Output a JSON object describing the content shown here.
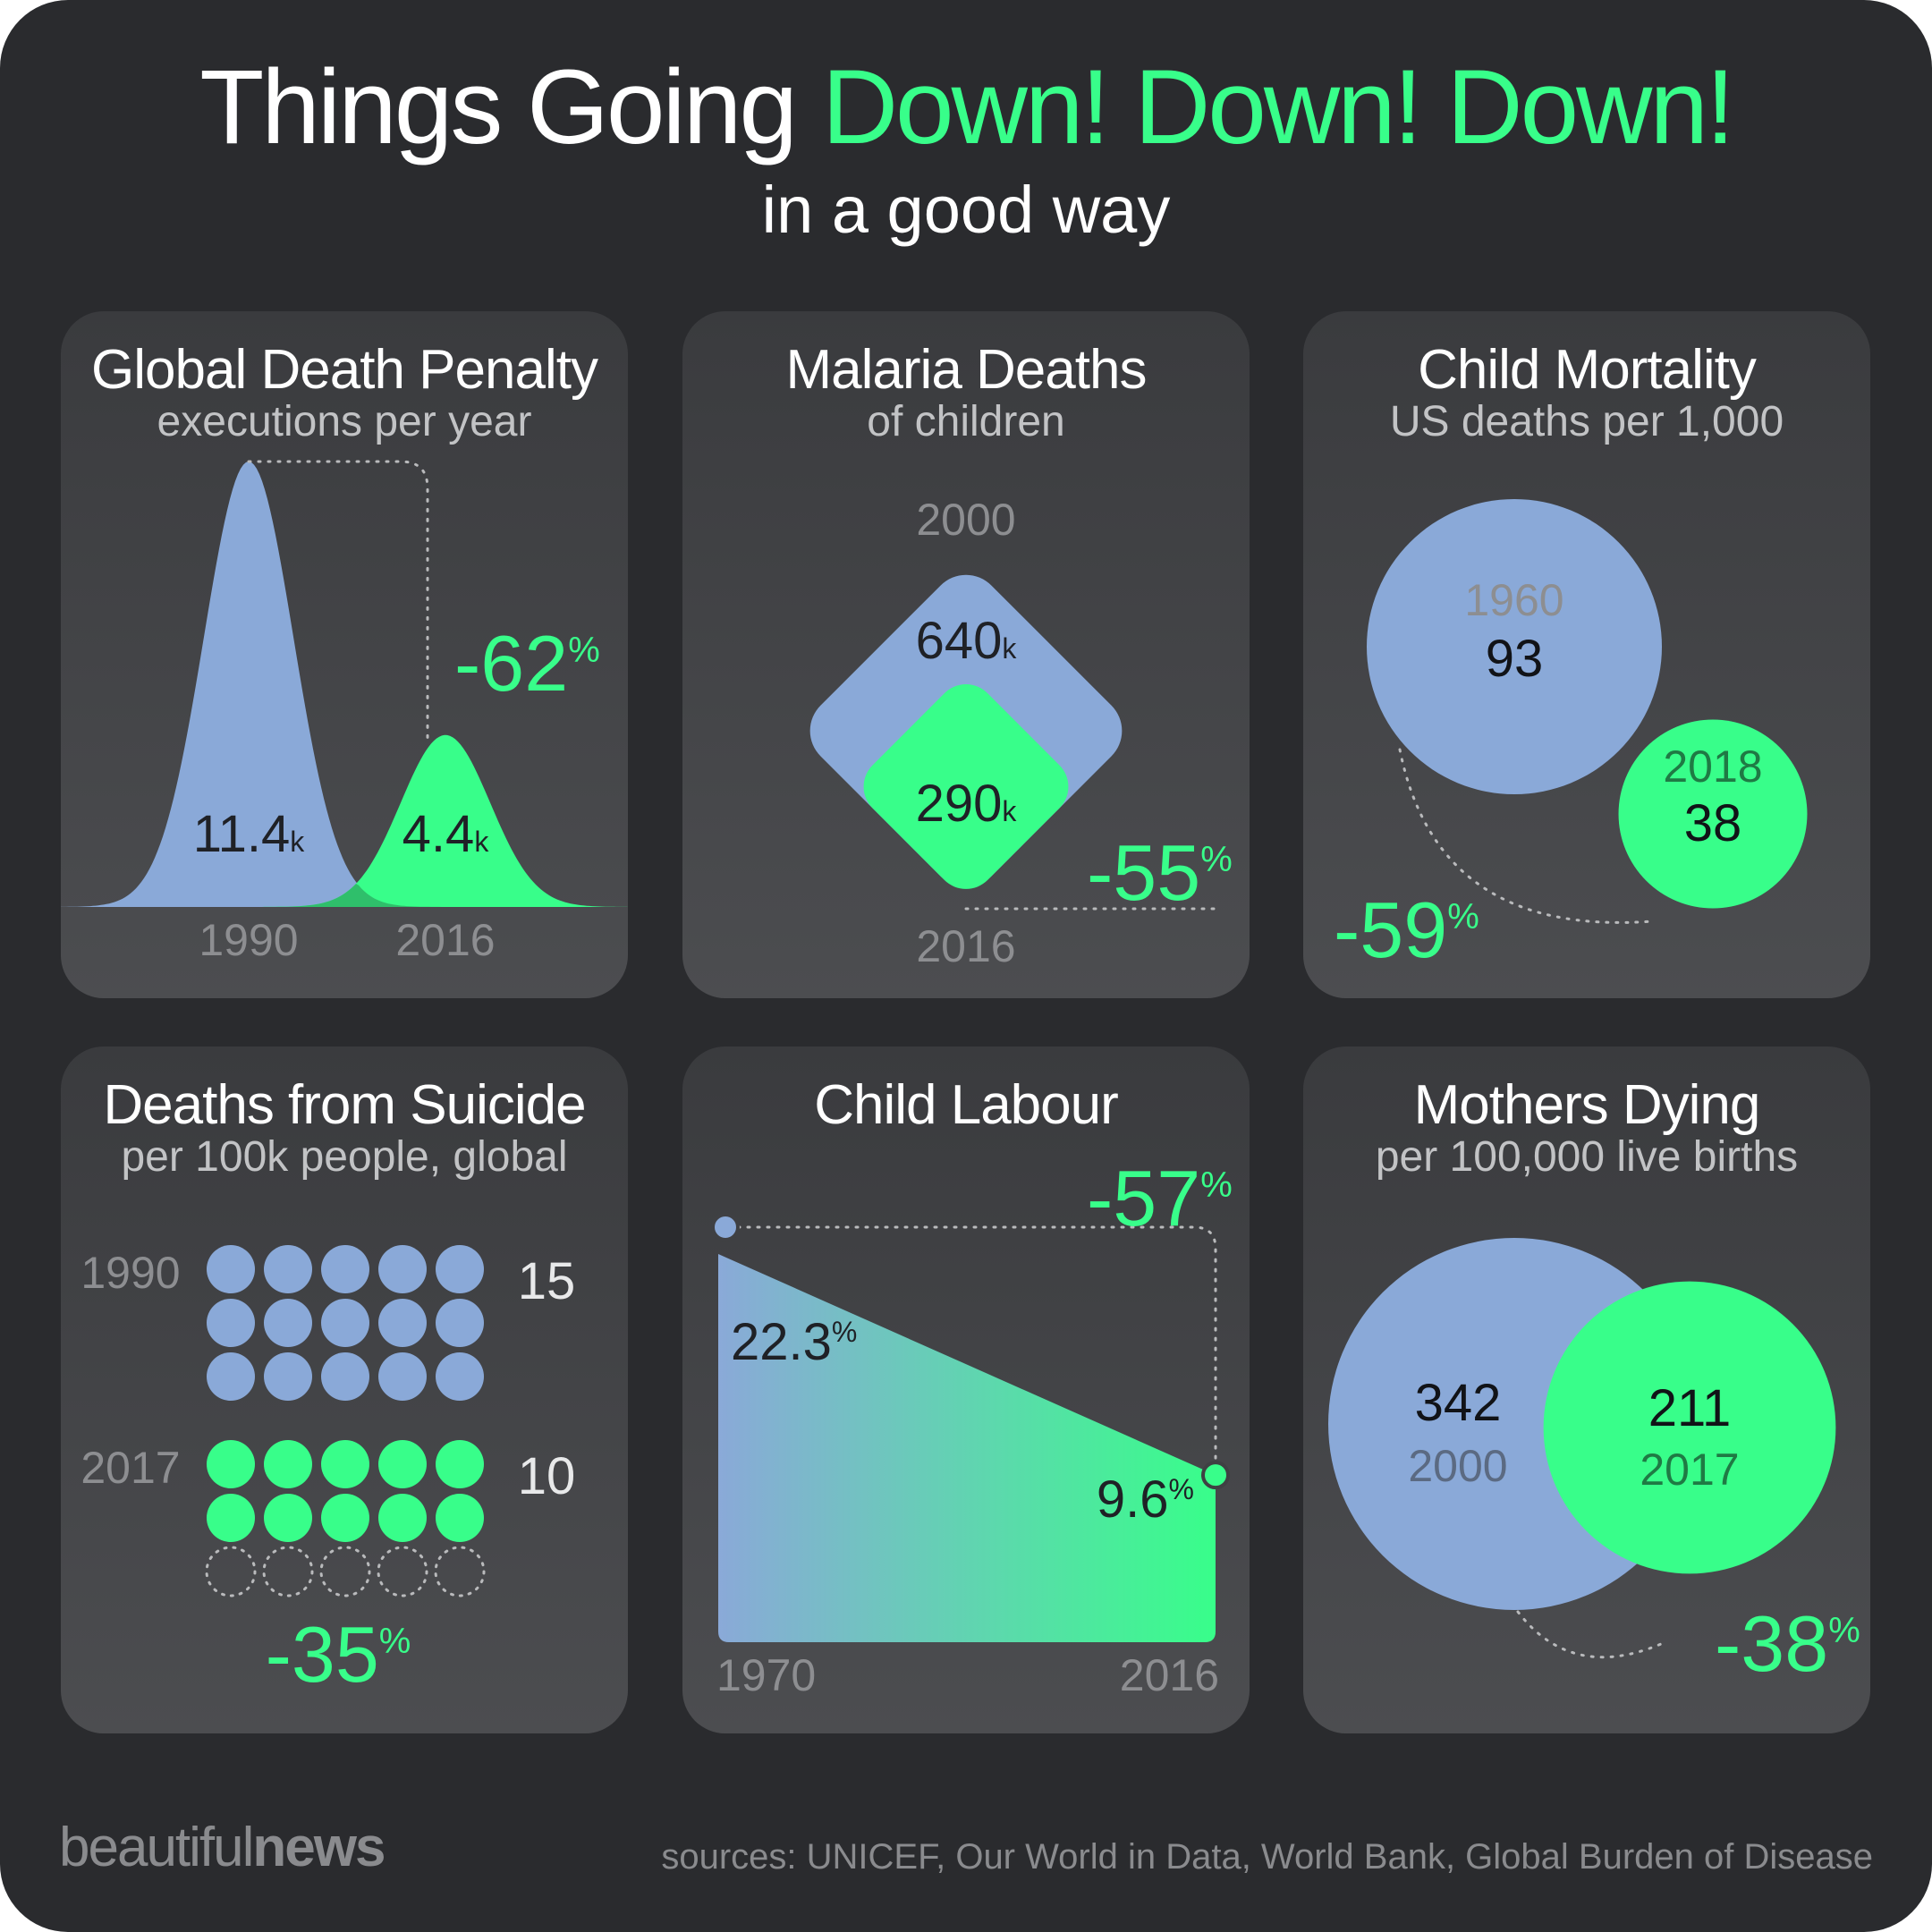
{
  "header": {
    "title_prefix": "Things Going ",
    "title_highlight": "Down! Down! Down!",
    "subtitle": "in a good way"
  },
  "footer": {
    "brand_light": "beautiful",
    "brand_bold": "news",
    "sources": "sources: UNICEF, Our World in Data, World Bank, Global Burden of Disease"
  },
  "colors": {
    "background": "#2a2b2e",
    "old": "#8aa9d8",
    "new": "#38fe8a",
    "text_dark": "#1f2126",
    "muted": "#8d8e91"
  },
  "chart_data": [
    {
      "type": "area",
      "title": "Global Death Penalty",
      "subtitle": "executions per year",
      "categories": [
        "1990",
        "2016"
      ],
      "values": [
        11.4,
        4.4
      ],
      "labels": [
        "11.4",
        "4.4"
      ],
      "unit": "k",
      "change": "-62",
      "change_unit": "%"
    },
    {
      "type": "area",
      "title": "Malaria Deaths",
      "subtitle": "of children",
      "categories": [
        "2000",
        "2016"
      ],
      "values": [
        640,
        290
      ],
      "labels": [
        "640",
        "290"
      ],
      "unit": "k",
      "change": "-55",
      "change_unit": "%"
    },
    {
      "type": "scatter",
      "title": "Child Mortality",
      "subtitle": "US deaths per 1,000",
      "categories": [
        "1960",
        "2018"
      ],
      "values": [
        93,
        38
      ],
      "labels": [
        "93",
        "38"
      ],
      "change": "-59",
      "change_unit": "%"
    },
    {
      "type": "scatter",
      "title": "Deaths from Suicide",
      "subtitle": "per 100k people, global",
      "categories": [
        "1990",
        "2017"
      ],
      "values": [
        15,
        10
      ],
      "labels": [
        "15",
        "10"
      ],
      "change": "-35",
      "change_unit": "%"
    },
    {
      "type": "area",
      "title": "Child Labour",
      "categories": [
        "1970",
        "2016"
      ],
      "values": [
        22.3,
        9.6
      ],
      "labels": [
        "22.3",
        "9.6"
      ],
      "unit": "%",
      "change": "-57",
      "change_unit": "%"
    },
    {
      "type": "scatter",
      "title": "Mothers Dying",
      "subtitle": "per 100,000 live births",
      "categories": [
        "2000",
        "2017"
      ],
      "values": [
        342,
        211
      ],
      "labels": [
        "342",
        "211"
      ],
      "change": "-38",
      "change_unit": "%"
    }
  ]
}
